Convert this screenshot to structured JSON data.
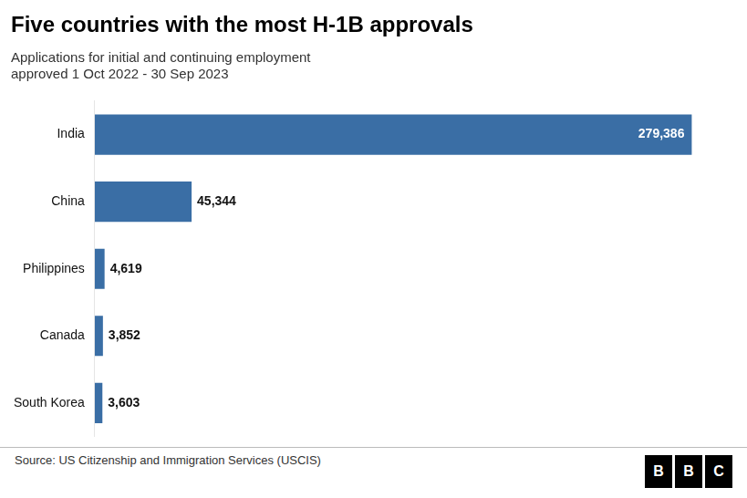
{
  "chart_data": {
    "type": "bar",
    "orientation": "horizontal",
    "title": "Five countries with the most H-1B approvals",
    "subtitle": "Applications for initial and continuing employment\napproved 1 Oct 2022 - 30 Sep 2023",
    "categories": [
      "India",
      "China",
      "Philippines",
      "Canada",
      "South Korea"
    ],
    "values": [
      279386,
      45344,
      4619,
      3852,
      3603
    ],
    "value_labels": [
      "279,386",
      "45,344",
      "4,619",
      "3,852",
      "3,603"
    ],
    "data_labels": true,
    "color": "#3a6ea5",
    "xlim": [
      0,
      295000
    ],
    "grid": false,
    "tick_labels": "y",
    "annotations": [
      "Source: US Citizenship and Immigration Services (USCIS)",
      "BBC"
    ]
  }
}
